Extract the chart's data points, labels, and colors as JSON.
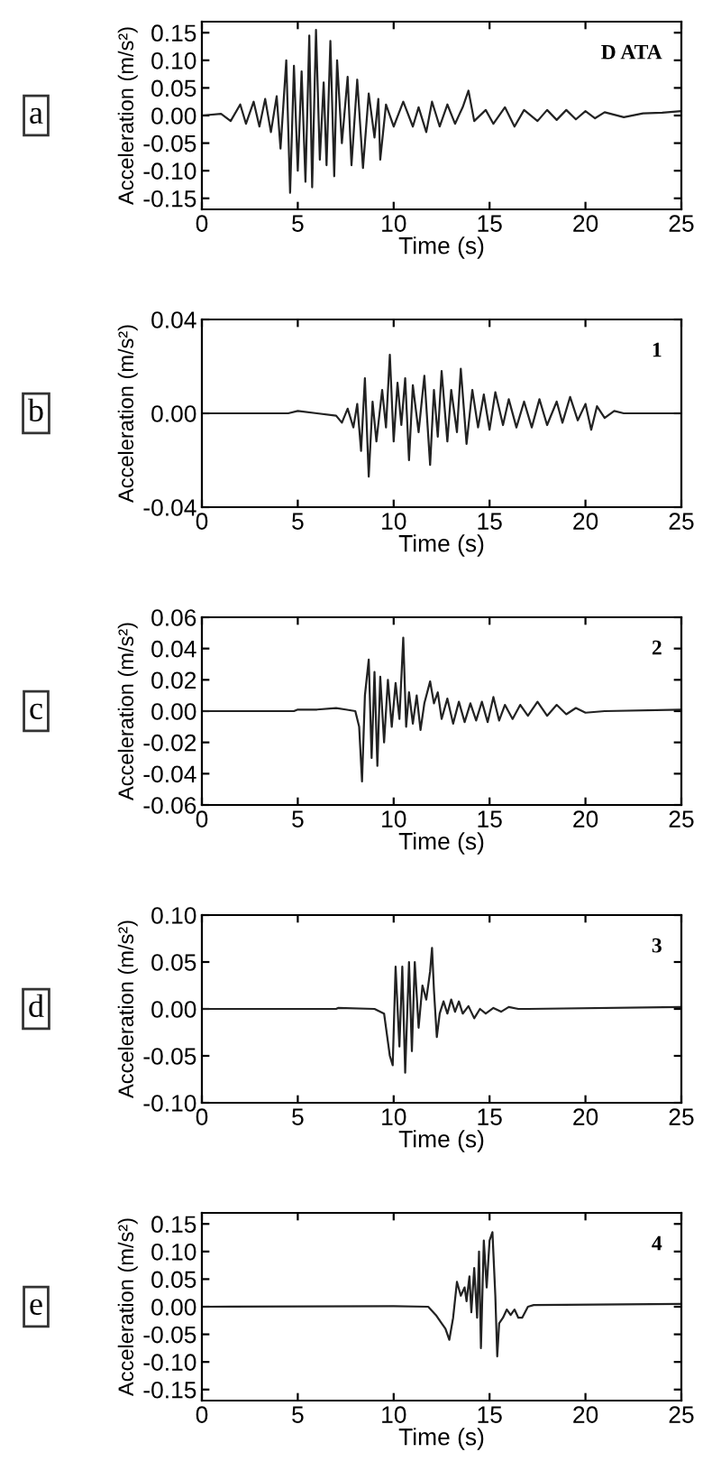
{
  "chart_data": [
    {
      "type": "line",
      "title": "D ATA",
      "xlabel": "Time (s)",
      "ylabel": "Acceleration (m/s²)",
      "annotations": [
        "a"
      ],
      "xlim": [
        0,
        25
      ],
      "xticks": [
        0,
        5,
        10,
        15,
        20,
        25
      ],
      "ylim": [
        -0.17,
        0.17
      ],
      "yticks": [
        {
          "value": -0.15,
          "label": "-0.15"
        },
        {
          "value": -0.1,
          "label": "-0.10"
        },
        {
          "value": -0.05,
          "label": "-0.05"
        },
        {
          "value": 0,
          "label": "0.00"
        },
        {
          "value": 0.05,
          "label": "0.05"
        },
        {
          "value": 0.1,
          "label": "0.10"
        },
        {
          "value": 0.15,
          "label": "0.15"
        }
      ],
      "x": [
        0,
        1,
        1.5,
        2,
        2.3,
        2.7,
        3,
        3.3,
        3.6,
        3.9,
        4.1,
        4.4,
        4.6,
        4.8,
        5.0,
        5.2,
        5.4,
        5.6,
        5.75,
        5.95,
        6.15,
        6.35,
        6.5,
        6.7,
        6.9,
        7.05,
        7.3,
        7.6,
        7.8,
        8.1,
        8.4,
        8.7,
        9.0,
        9.2,
        9.3,
        9.6,
        10,
        10.5,
        11,
        11.3,
        11.7,
        12,
        12.4,
        12.8,
        13.2,
        13.6,
        13.9,
        14.2,
        14.8,
        15.2,
        15.8,
        16.3,
        16.8,
        17.5,
        18,
        18.5,
        19,
        19.5,
        20,
        20.5,
        21,
        22,
        23,
        24,
        25
      ],
      "series": [
        {
          "color": "#222222",
          "values": [
            0,
            0.003,
            -0.01,
            0.02,
            -0.015,
            0.025,
            -0.02,
            0.03,
            -0.03,
            0.035,
            -0.06,
            0.1,
            -0.14,
            0.09,
            -0.1,
            0.08,
            -0.12,
            0.145,
            -0.13,
            0.155,
            -0.08,
            0.06,
            -0.09,
            0.135,
            -0.11,
            0.1,
            -0.05,
            0.07,
            -0.09,
            0.065,
            -0.095,
            0.04,
            -0.04,
            0.03,
            -0.08,
            0.02,
            -0.02,
            0.025,
            -0.02,
            0.015,
            -0.03,
            0.025,
            -0.02,
            0.02,
            -0.015,
            0.015,
            0.045,
            -0.01,
            0.01,
            -0.015,
            0.015,
            -0.02,
            0.01,
            -0.01,
            0.01,
            -0.008,
            0.01,
            -0.007,
            0.008,
            -0.005,
            0.006,
            -0.003,
            0.004,
            0.005,
            0.008
          ]
        }
      ]
    },
    {
      "type": "line",
      "title": "1",
      "xlabel": "Time (s)",
      "ylabel": "Acceleration (m/s²)",
      "annotations": [
        "b"
      ],
      "xlim": [
        0,
        25
      ],
      "xticks": [
        0,
        5,
        10,
        15,
        20,
        25
      ],
      "ylim": [
        -0.04,
        0.04
      ],
      "yticks": [
        {
          "value": -0.04,
          "label": "-0.04"
        },
        {
          "value": 0,
          "label": "0.00"
        },
        {
          "value": 0.04,
          "label": "0.04"
        }
      ],
      "x": [
        0,
        4.5,
        5,
        6,
        7,
        7.3,
        7.6,
        7.9,
        8.1,
        8.3,
        8.5,
        8.7,
        8.9,
        9.1,
        9.4,
        9.6,
        9.8,
        10.0,
        10.2,
        10.4,
        10.6,
        10.8,
        11,
        11.3,
        11.6,
        11.9,
        12.1,
        12.3,
        12.5,
        12.8,
        13.0,
        13.3,
        13.5,
        13.8,
        14.1,
        14.4,
        14.7,
        15.0,
        15.3,
        15.7,
        16,
        16.4,
        16.8,
        17.2,
        17.6,
        18,
        18.5,
        18.8,
        19.2,
        19.6,
        20,
        20.3,
        20.6,
        21,
        21.5,
        22,
        25
      ],
      "series": [
        {
          "color": "#222222",
          "values": [
            0,
            0,
            0.001,
            0,
            -0.001,
            -0.004,
            0.002,
            -0.006,
            0.004,
            -0.016,
            0.015,
            -0.027,
            0.005,
            -0.012,
            0.01,
            -0.006,
            0.025,
            -0.012,
            0.013,
            -0.005,
            0.015,
            -0.02,
            0.012,
            -0.008,
            0.016,
            -0.022,
            0.01,
            -0.01,
            0.018,
            -0.012,
            0.01,
            -0.008,
            0.019,
            -0.013,
            0.01,
            -0.006,
            0.008,
            -0.007,
            0.009,
            -0.005,
            0.006,
            -0.006,
            0.005,
            -0.006,
            0.006,
            -0.005,
            0.005,
            -0.004,
            0.007,
            -0.003,
            0.004,
            -0.007,
            0.003,
            -0.002,
            0.001,
            0,
            0
          ]
        }
      ]
    },
    {
      "type": "line",
      "title": "2",
      "xlabel": "Time (s)",
      "ylabel": "Acceleration (m/s²)",
      "annotations": [
        "c"
      ],
      "xlim": [
        0,
        25
      ],
      "xticks": [
        0,
        5,
        10,
        15,
        20,
        25
      ],
      "ylim": [
        -0.06,
        0.06
      ],
      "yticks": [
        {
          "value": -0.06,
          "label": "-0.06"
        },
        {
          "value": -0.04,
          "label": "-0.04"
        },
        {
          "value": -0.02,
          "label": "-0.02"
        },
        {
          "value": 0,
          "label": "0.00"
        },
        {
          "value": 0.02,
          "label": "0.02"
        },
        {
          "value": 0.04,
          "label": "0.04"
        },
        {
          "value": 0.06,
          "label": "0.06"
        }
      ],
      "x": [
        0,
        4.8,
        5,
        6,
        7,
        7.5,
        8,
        8.2,
        8.35,
        8.5,
        8.7,
        8.85,
        9.0,
        9.15,
        9.3,
        9.5,
        9.7,
        9.9,
        10.1,
        10.3,
        10.5,
        10.65,
        10.8,
        11,
        11.2,
        11.4,
        11.6,
        11.9,
        12.1,
        12.3,
        12.5,
        12.8,
        13.1,
        13.4,
        13.7,
        14,
        14.3,
        14.6,
        14.9,
        15.2,
        15.5,
        15.8,
        16.2,
        16.6,
        17,
        17.5,
        18,
        18.5,
        19,
        19.5,
        20,
        21,
        25
      ],
      "series": [
        {
          "color": "#222222",
          "values": [
            0,
            0,
            0.001,
            0.001,
            0.002,
            0.001,
            0,
            -0.01,
            -0.045,
            0.01,
            0.033,
            -0.03,
            0.025,
            -0.035,
            0.022,
            -0.02,
            0.02,
            -0.01,
            0.018,
            -0.005,
            0.047,
            -0.01,
            0.012,
            -0.008,
            0.01,
            -0.012,
            0.005,
            0.019,
            0.005,
            0.012,
            -0.005,
            0.008,
            -0.008,
            0.006,
            -0.007,
            0.005,
            -0.006,
            0.006,
            -0.007,
            0.009,
            -0.006,
            0.004,
            -0.005,
            0.004,
            -0.003,
            0.006,
            -0.003,
            0.004,
            -0.002,
            0.002,
            -0.001,
            0,
            0.001
          ]
        }
      ]
    },
    {
      "type": "line",
      "title": "3",
      "xlabel": "Time (s)",
      "ylabel": "Acceleration (m/s²)",
      "annotations": [
        "d"
      ],
      "xlim": [
        0,
        25
      ],
      "xticks": [
        0,
        5,
        10,
        15,
        20,
        25
      ],
      "ylim": [
        -0.1,
        0.1
      ],
      "yticks": [
        {
          "value": -0.1,
          "label": "-0.10"
        },
        {
          "value": -0.05,
          "label": "-0.05"
        },
        {
          "value": 0,
          "label": "0.00"
        },
        {
          "value": 0.05,
          "label": "0.05"
        },
        {
          "value": 0.1,
          "label": "0.10"
        }
      ],
      "x": [
        0,
        7,
        7.1,
        9,
        9.5,
        9.8,
        9.95,
        10.1,
        10.3,
        10.45,
        10.6,
        10.8,
        10.95,
        11.1,
        11.3,
        11.5,
        11.7,
        11.9,
        12.0,
        12.1,
        12.25,
        12.4,
        12.6,
        12.8,
        13,
        13.2,
        13.4,
        13.6,
        13.9,
        14.2,
        14.5,
        14.8,
        15.2,
        15.6,
        16,
        16.5,
        17,
        25
      ],
      "series": [
        {
          "color": "#222222",
          "values": [
            0,
            0,
            0.001,
            0,
            -0.005,
            -0.05,
            -0.06,
            0.045,
            -0.04,
            0.045,
            -0.068,
            0.05,
            -0.045,
            0.05,
            -0.02,
            0.025,
            0.01,
            0.04,
            0.065,
            0.02,
            -0.03,
            -0.005,
            0.008,
            -0.005,
            0.01,
            -0.003,
            0.008,
            -0.005,
            0.003,
            -0.01,
            0,
            -0.005,
            0.001,
            -0.003,
            0.002,
            0,
            0,
            0.002
          ]
        }
      ]
    },
    {
      "type": "line",
      "title": "4",
      "xlabel": "Time (s)",
      "ylabel": "Acceleration (m/s²)",
      "annotations": [
        "e"
      ],
      "xlim": [
        0,
        25
      ],
      "xticks": [
        0,
        5,
        10,
        15,
        20,
        25
      ],
      "ylim": [
        -0.17,
        0.17
      ],
      "yticks": [
        {
          "value": -0.15,
          "label": "-0.15"
        },
        {
          "value": -0.1,
          "label": "-0.10"
        },
        {
          "value": -0.05,
          "label": "-0.05"
        },
        {
          "value": 0,
          "label": "0.00"
        },
        {
          "value": 0.05,
          "label": "0.05"
        },
        {
          "value": 0.1,
          "label": "0.10"
        },
        {
          "value": 0.15,
          "label": "0.15"
        }
      ],
      "x": [
        0,
        10,
        11.8,
        12.2,
        12.5,
        12.7,
        12.9,
        13.1,
        13.3,
        13.5,
        13.7,
        13.8,
        13.95,
        14.05,
        14.2,
        14.35,
        14.45,
        14.55,
        14.7,
        14.85,
        15.0,
        15.15,
        15.3,
        15.4,
        15.5,
        15.7,
        15.9,
        16.1,
        16.3,
        16.5,
        16.7,
        17.0,
        17.3,
        25
      ],
      "series": [
        {
          "color": "#222222",
          "values": [
            0,
            0.001,
            0,
            -0.015,
            -0.03,
            -0.04,
            -0.06,
            -0.02,
            0.045,
            0.02,
            0.035,
            0.01,
            0.055,
            -0.01,
            0.07,
            -0.02,
            0.1,
            -0.075,
            0.12,
            0.035,
            0.12,
            0.135,
            0.02,
            -0.09,
            -0.03,
            -0.02,
            -0.005,
            -0.015,
            -0.005,
            -0.02,
            -0.02,
            0.0,
            0.003,
            0.005
          ]
        }
      ]
    }
  ]
}
